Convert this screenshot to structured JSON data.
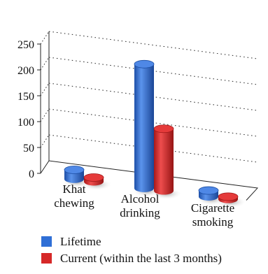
{
  "chart_data": {
    "type": "bar",
    "style": "3d-cylinder",
    "categories": [
      "Khat\nchewing",
      "Alcohol\ndrinking",
      "Cigarette\nsmoking"
    ],
    "series": [
      {
        "name": "Lifetime",
        "color": "#2f6fd6",
        "values": [
          18,
          240,
          12
        ]
      },
      {
        "name": "Current (within the last 3 months)",
        "color": "#d62828",
        "values": [
          8,
          120,
          5
        ]
      }
    ],
    "yticks": [
      0,
      50,
      100,
      150,
      200,
      250
    ],
    "ylim": [
      0,
      250
    ],
    "grid": true,
    "legend_position": "bottom-left"
  }
}
